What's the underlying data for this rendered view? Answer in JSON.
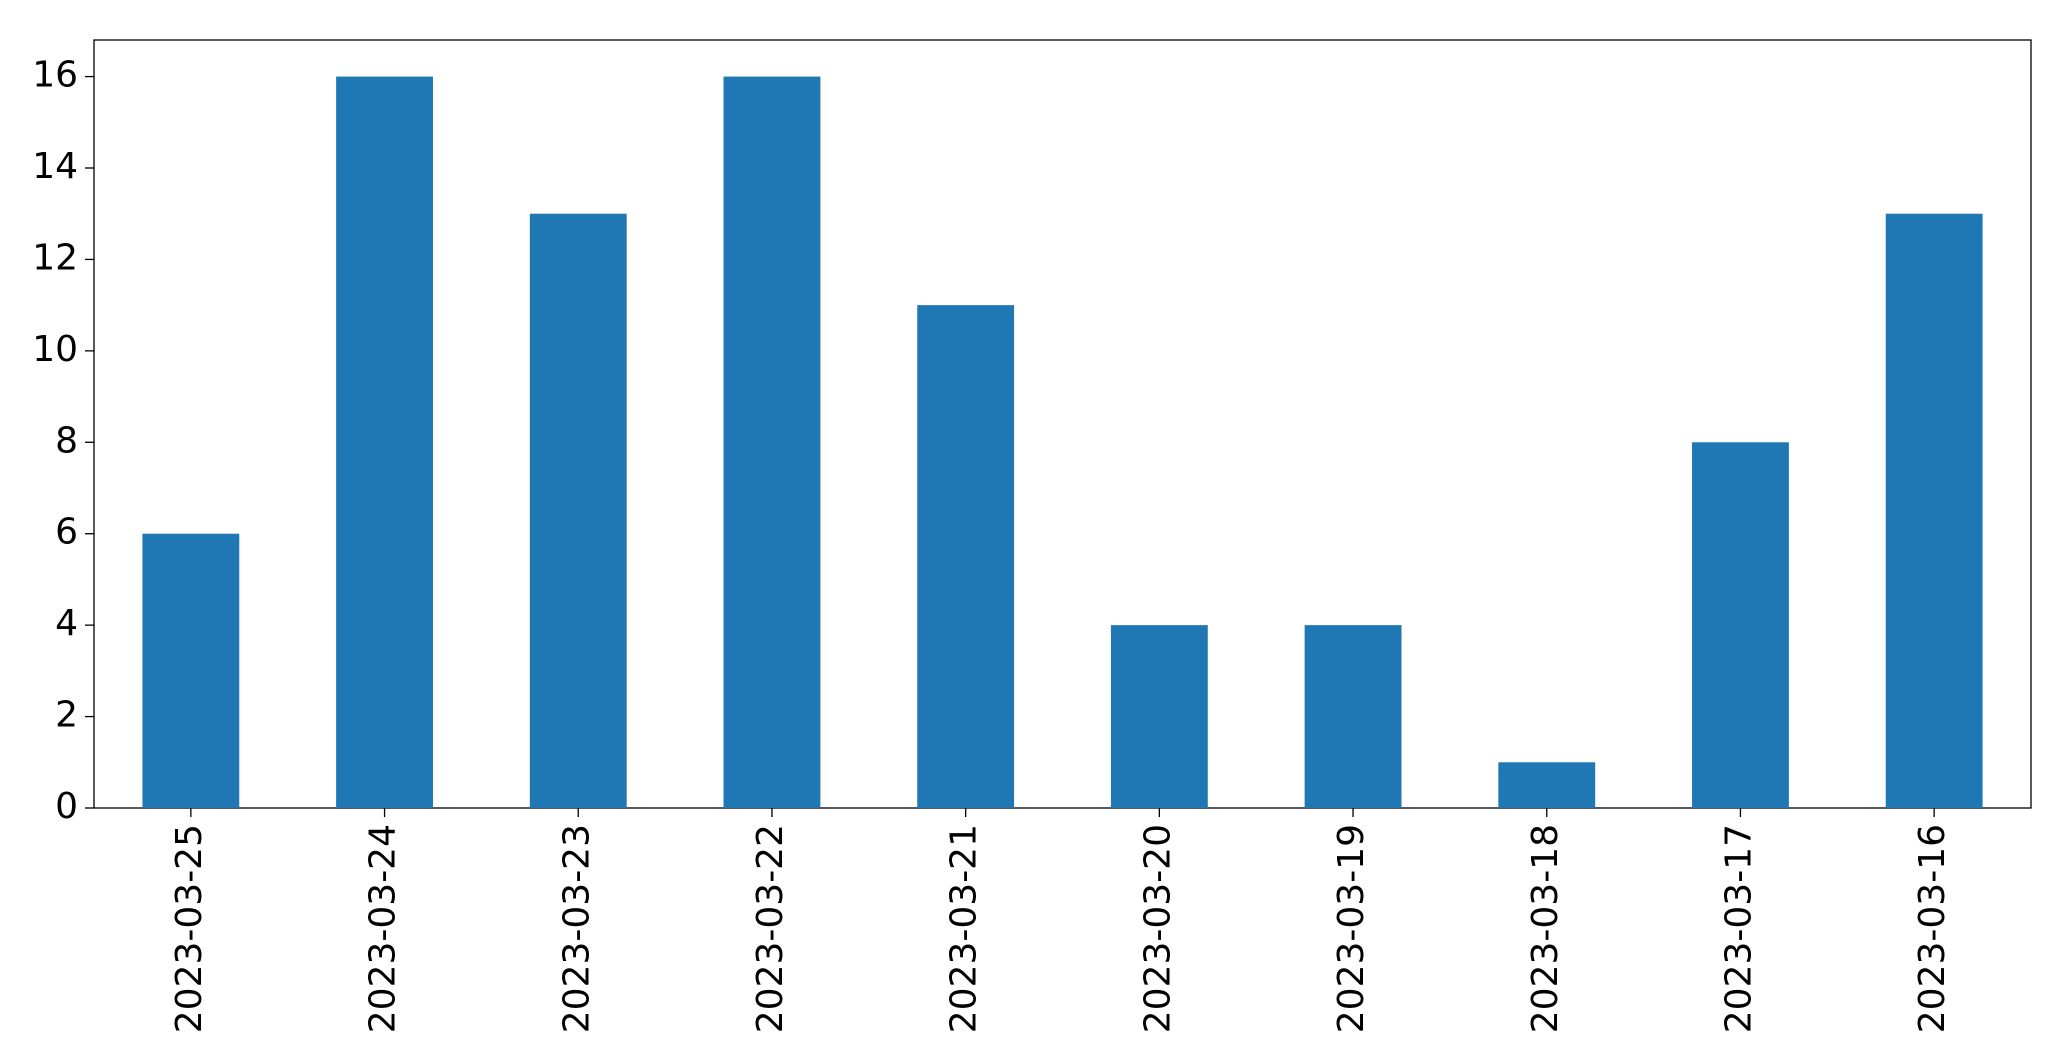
{
  "chart_data": {
    "type": "bar",
    "categories": [
      "2023-03-25",
      "2023-03-24",
      "2023-03-23",
      "2023-03-22",
      "2023-03-21",
      "2023-03-20",
      "2023-03-19",
      "2023-03-18",
      "2023-03-17",
      "2023-03-16"
    ],
    "values": [
      6,
      16,
      13,
      16,
      11,
      4,
      4,
      1,
      8,
      13
    ],
    "color": "#1f77b4",
    "ylim": [
      0,
      16.8
    ],
    "yticks": [
      0,
      2,
      4,
      6,
      8,
      10,
      12,
      14,
      16
    ],
    "grid": false
  }
}
